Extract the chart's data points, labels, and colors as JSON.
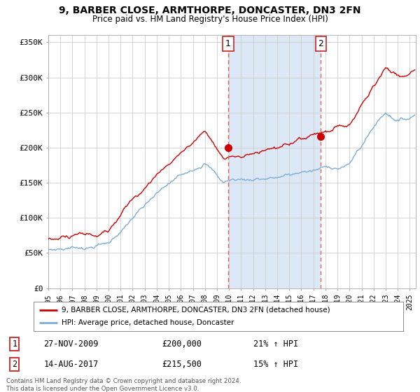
{
  "title": "9, BARBER CLOSE, ARMTHORPE, DONCASTER, DN3 2FN",
  "subtitle": "Price paid vs. HM Land Registry's House Price Index (HPI)",
  "ylabel_ticks": [
    "£0",
    "£50K",
    "£100K",
    "£150K",
    "£200K",
    "£250K",
    "£300K",
    "£350K"
  ],
  "ytick_values": [
    0,
    50000,
    100000,
    150000,
    200000,
    250000,
    300000,
    350000
  ],
  "ylim": [
    0,
    360000
  ],
  "xlim_start": 1995.0,
  "xlim_end": 2025.5,
  "red_line_color": "#cc0000",
  "blue_line_color": "#7aadda",
  "shade_color": "#dce8f5",
  "background_color": "#ffffff",
  "plot_bg_color": "#ffffff",
  "grid_color": "#cccccc",
  "vline1_x": 2009.92,
  "vline2_x": 2017.62,
  "vline_color": "#e06060",
  "marker1_x": 2009.92,
  "marker1_y": 200000,
  "marker2_x": 2017.62,
  "marker2_y": 215500,
  "label1_text": "1",
  "label2_text": "2",
  "legend_red": "9, BARBER CLOSE, ARMTHORPE, DONCASTER, DN3 2FN (detached house)",
  "legend_blue": "HPI: Average price, detached house, Doncaster",
  "note1_num": "1",
  "note1_date": "27-NOV-2009",
  "note1_price": "£200,000",
  "note1_hpi": "21% ↑ HPI",
  "note2_num": "2",
  "note2_date": "14-AUG-2017",
  "note2_price": "£215,500",
  "note2_hpi": "15% ↑ HPI",
  "footer": "Contains HM Land Registry data © Crown copyright and database right 2024.\nThis data is licensed under the Open Government Licence v3.0."
}
